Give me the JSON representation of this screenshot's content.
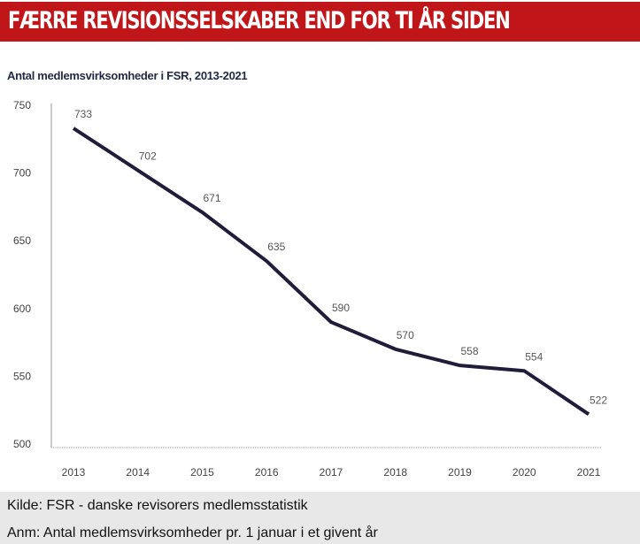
{
  "header": {
    "title": "FÆRRE REVISIONSSELSKABER END FOR TI ÅR SIDEN"
  },
  "footer": {
    "source": "Kilde: FSR - danske revisorers medlemsstatistik",
    "note": "Anm: Antal medlemsvirksomheder pr. 1 januar i et givent år"
  },
  "chart_data": {
    "type": "line",
    "title": "Antal medlemsvirksomheder i FSR, 2013-2021",
    "categories": [
      "2013",
      "2014",
      "2015",
      "2016",
      "2017",
      "2018",
      "2019",
      "2020",
      "2021"
    ],
    "values": [
      733,
      702,
      671,
      635,
      590,
      570,
      558,
      554,
      522
    ],
    "ylim": [
      500,
      750
    ],
    "yticks": [
      500,
      550,
      600,
      650,
      700,
      750
    ],
    "grid": false,
    "line_color": "#1f1d3a",
    "header_color": "#c0161a"
  }
}
